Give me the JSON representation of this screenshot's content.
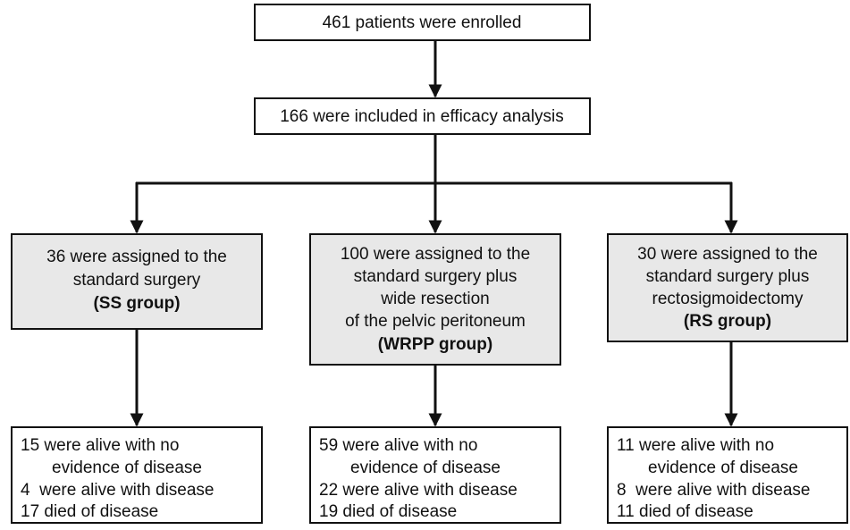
{
  "nodes": [
    {
      "label": "461 patients were enrolled"
    },
    {
      "label": "166 were included in efficacy analysis"
    }
  ],
  "groups": [
    {
      "lines": [
        "36 were assigned to the",
        "standard surgery"
      ],
      "group": "(SS group)"
    },
    {
      "lines": [
        "100 were assigned to the",
        "standard surgery plus",
        "wide resection",
        "of the pelvic peritoneum"
      ],
      "group": "(WRPP group)"
    },
    {
      "lines": [
        "30 were assigned to the",
        "standard surgery plus",
        "rectosigmoidectomy"
      ],
      "group": "(RS group)"
    }
  ],
  "outcomes": [
    {
      "lines": [
        "15 were alive with no",
        "evidence of disease",
        "4  were alive with disease",
        "17 died of disease"
      ]
    },
    {
      "lines": [
        "59 were alive with no",
        "evidence of disease",
        "22 were alive with disease",
        "19 died of disease"
      ]
    },
    {
      "lines": [
        "11 were alive with no",
        "evidence of disease",
        "8  were alive with disease",
        "11 died of disease"
      ]
    }
  ]
}
